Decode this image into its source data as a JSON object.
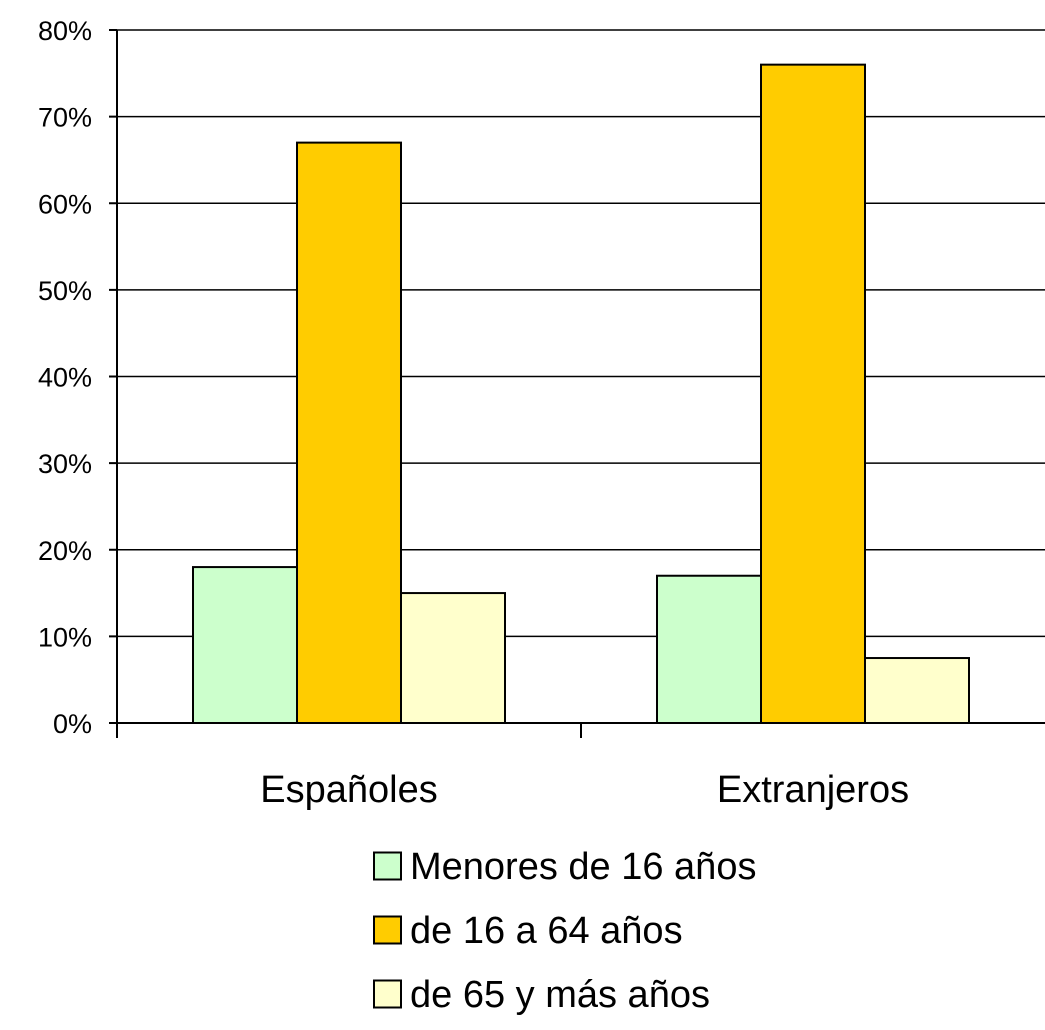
{
  "chart_data": {
    "type": "bar",
    "categories": [
      "Españoles",
      "Extranjeros"
    ],
    "series": [
      {
        "name": "Menores de 16 años",
        "values": [
          18,
          17
        ],
        "color": "#ccffcc"
      },
      {
        "name": "de 16 a 64 años",
        "values": [
          67,
          76
        ],
        "color": "#ffcc00"
      },
      {
        "name": "de 65 y más años",
        "values": [
          15,
          7.5
        ],
        "color": "#ffffcc"
      }
    ],
    "ylim": [
      0,
      80
    ],
    "yticks": [
      "0%",
      "10%",
      "20%",
      "30%",
      "40%",
      "50%",
      "60%",
      "70%",
      "80%"
    ],
    "grid": true,
    "legend_position": "bottom"
  }
}
